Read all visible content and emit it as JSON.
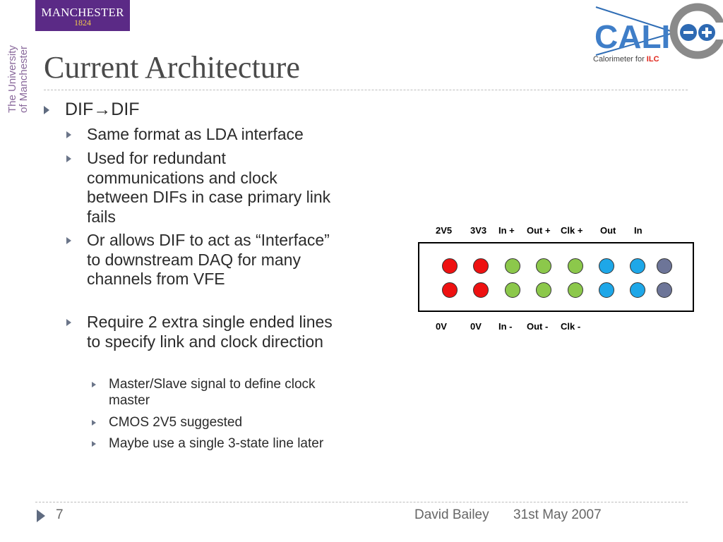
{
  "logos": {
    "manchester_line1": "MANCHESTER",
    "manchester_line2": "1824",
    "university_line1": "The University",
    "university_line2": "of Manchester",
    "calice_text": "CALI",
    "calice_tagline": "Calorimeter for ",
    "calice_tagline_ilc": "ILC"
  },
  "slide": {
    "title": "Current Architecture",
    "bullets": [
      {
        "level": 1,
        "text": "DIF→DIF"
      },
      {
        "level": 2,
        "text": "Same format as LDA interface"
      },
      {
        "level": 2,
        "text": "Used for redundant communications and clock between DIFs in case primary link fails"
      },
      {
        "level": 2,
        "text": "Or allows DIF to act as “Interface” to downstream DAQ for many channels from VFE"
      },
      {
        "level": 2,
        "text": "Require 2 extra single ended lines to specify link and clock direction"
      },
      {
        "level": 3,
        "text": "Master/Slave signal to define clock master"
      },
      {
        "level": 3,
        "text": "CMOS 2V5 suggested"
      },
      {
        "level": 3,
        "text": "Maybe use a single 3-state line later"
      }
    ]
  },
  "connector": {
    "top_labels": [
      "2V5",
      "3V3",
      "In +",
      "Out +",
      "Clk +",
      "Out",
      "In"
    ],
    "bottom_labels": [
      "0V",
      "0V",
      "In -",
      "Out -",
      "Clk -"
    ],
    "top_row_colors": [
      "red",
      "red",
      "green",
      "green",
      "green",
      "blue",
      "blue",
      "slate"
    ],
    "bottom_row_colors": [
      "red",
      "red",
      "green",
      "green",
      "green",
      "blue",
      "blue",
      "slate"
    ],
    "colors": {
      "red": "#ee1111",
      "green": "#8cc84b",
      "blue": "#1ea7e8",
      "slate": "#6d7598"
    }
  },
  "footer": {
    "page_number": "7",
    "author": "David Bailey",
    "date": "31st May 2007"
  }
}
